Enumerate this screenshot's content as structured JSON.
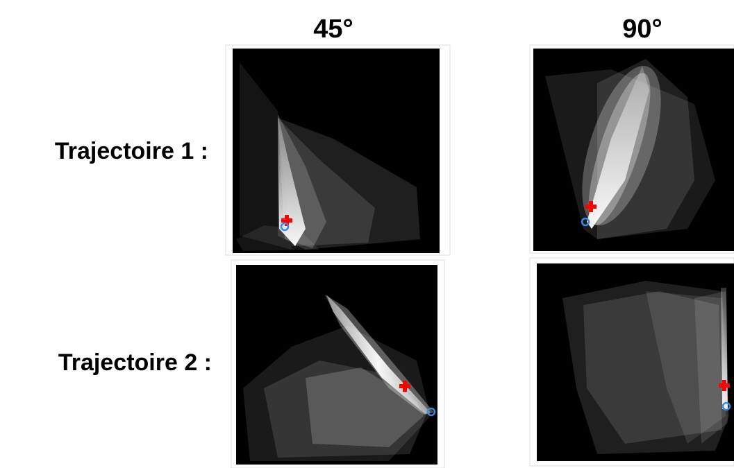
{
  "columns": [
    "45°",
    "90°"
  ],
  "rows": [
    "Trajectoire 1 :",
    "Trajectoire 2 :"
  ]
}
